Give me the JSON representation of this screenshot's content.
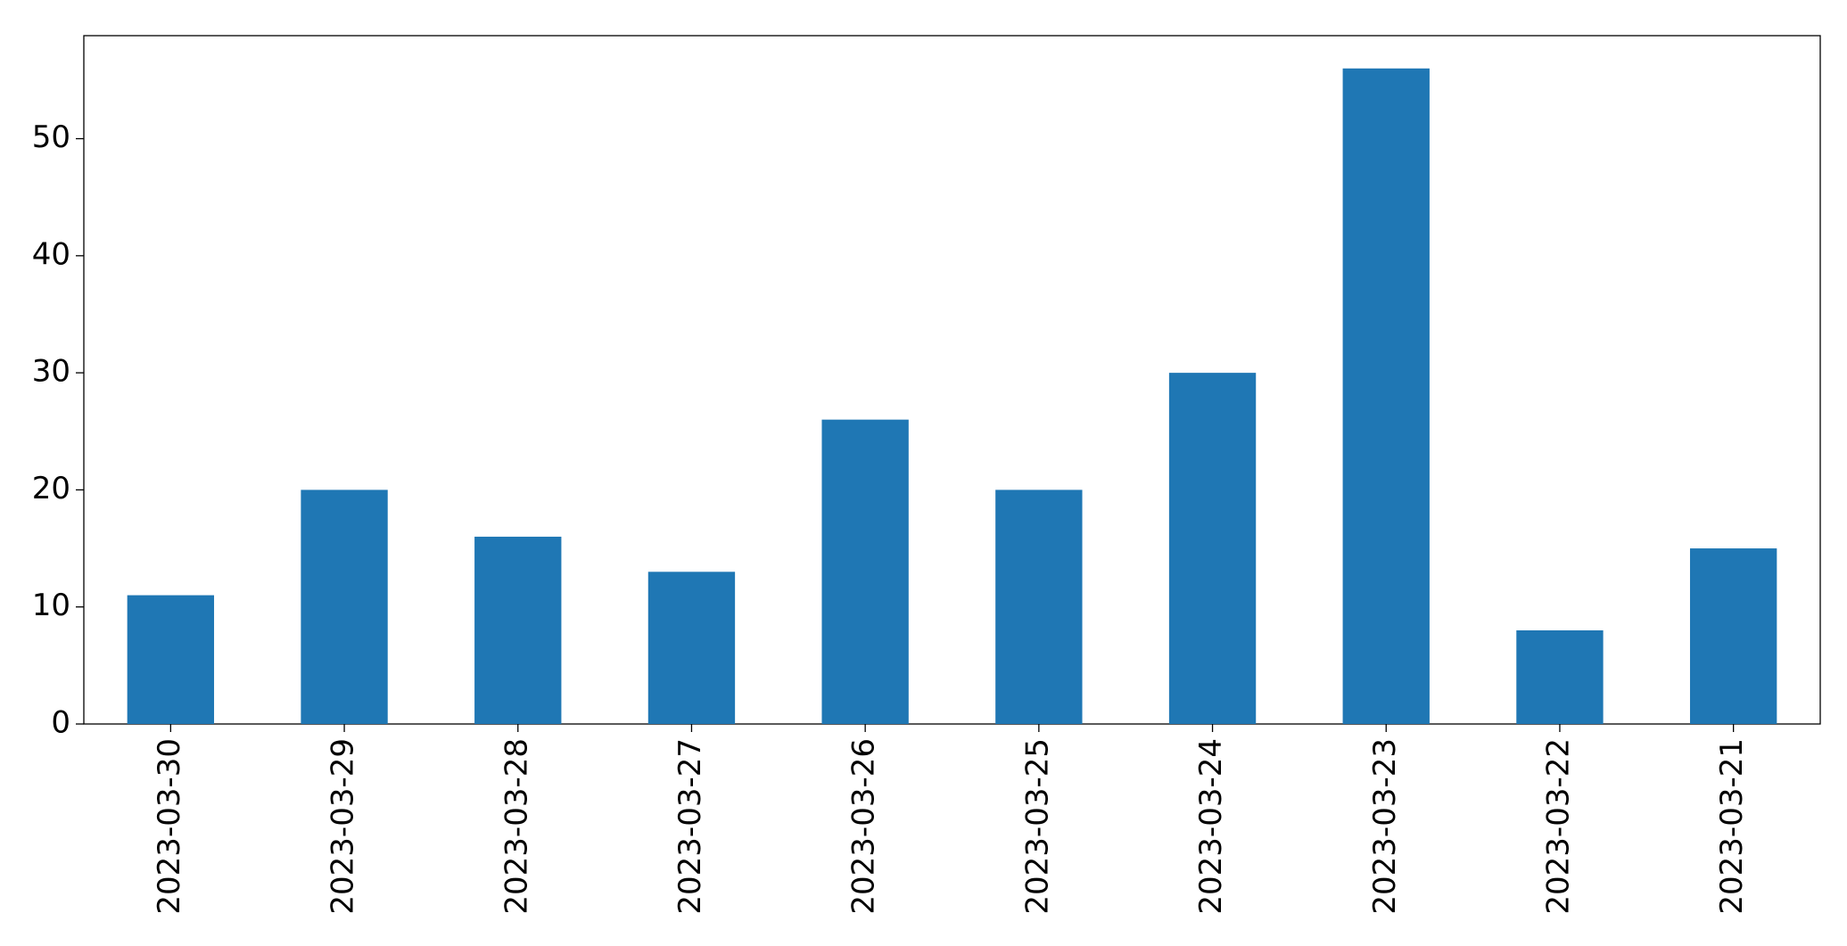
{
  "chart_data": {
    "type": "bar",
    "categories": [
      "2023-03-30",
      "2023-03-29",
      "2023-03-28",
      "2023-03-27",
      "2023-03-26",
      "2023-03-25",
      "2023-03-24",
      "2023-03-23",
      "2023-03-22",
      "2023-03-21"
    ],
    "values": [
      11,
      20,
      16,
      13,
      26,
      20,
      30,
      56,
      8,
      15
    ],
    "color": "#1f77b4",
    "ylim": [
      0,
      58.8
    ],
    "yticks": [
      0,
      10,
      20,
      30,
      40,
      50
    ],
    "grid": false
  }
}
